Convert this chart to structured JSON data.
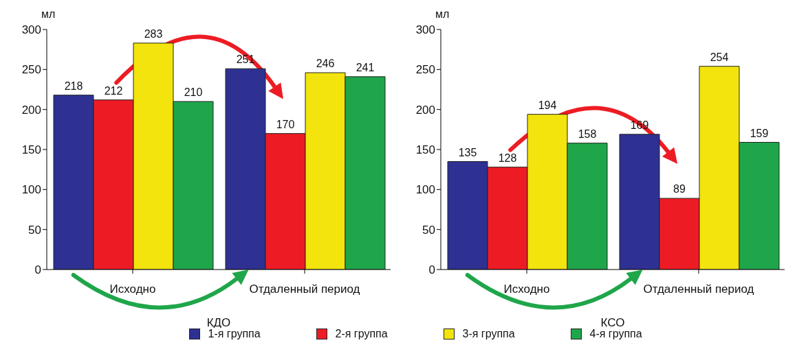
{
  "chart_data": [
    {
      "type": "bar",
      "xlabel": "КДО",
      "ylabel": "мл",
      "categories": [
        "Исходно",
        "Отдаленный период"
      ],
      "ylim": [
        0,
        300
      ],
      "yticks": [
        0,
        50,
        100,
        150,
        200,
        250,
        300
      ],
      "data_labels": true,
      "legend": "bottom",
      "series": [
        {
          "name": "1-я группа",
          "color": "#2e3192",
          "values": [
            218,
            251
          ]
        },
        {
          "name": "2-я группа",
          "color": "#ed1c24",
          "values": [
            212,
            170
          ]
        },
        {
          "name": "3-я группа",
          "color": "#f2e40c",
          "values": [
            283,
            246
          ]
        },
        {
          "name": "4-я группа",
          "color": "#1fa64a",
          "values": [
            210,
            241
          ]
        }
      ]
    },
    {
      "type": "bar",
      "xlabel": "КСО",
      "ylabel": "мл",
      "categories": [
        "Исходно",
        "Отдаленный период"
      ],
      "ylim": [
        0,
        300
      ],
      "yticks": [
        0,
        50,
        100,
        150,
        200,
        250,
        300
      ],
      "data_labels": true,
      "series": [
        {
          "color": "#2e3192",
          "values": [
            135,
            169
          ]
        },
        {
          "color": "#ed1c24",
          "values": [
            128,
            89
          ]
        },
        {
          "color": "#f2e40c",
          "values": [
            194,
            254
          ]
        },
        {
          "color": "#1fa64a",
          "values": [
            158,
            159
          ]
        }
      ]
    }
  ]
}
